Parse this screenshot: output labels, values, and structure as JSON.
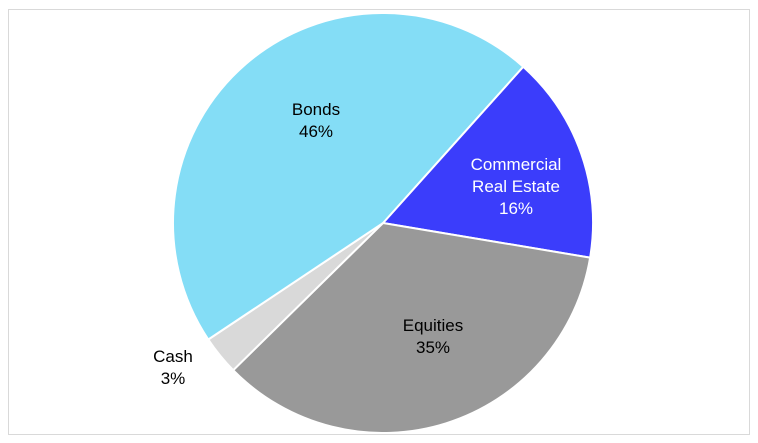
{
  "chart_data": {
    "type": "pie",
    "categories": [
      "Commercial Real Estate",
      "Equities",
      "Cash",
      "Bonds"
    ],
    "values": [
      16,
      35,
      3,
      46
    ],
    "value_labels": [
      "16%",
      "35%",
      "3%",
      "46%"
    ],
    "colors": [
      "#3b3dfb",
      "#999999",
      "#d9d9d9",
      "#84ddf6"
    ],
    "label_colors": [
      "#ffffff",
      "#000000",
      "#000000",
      "#000000"
    ]
  }
}
